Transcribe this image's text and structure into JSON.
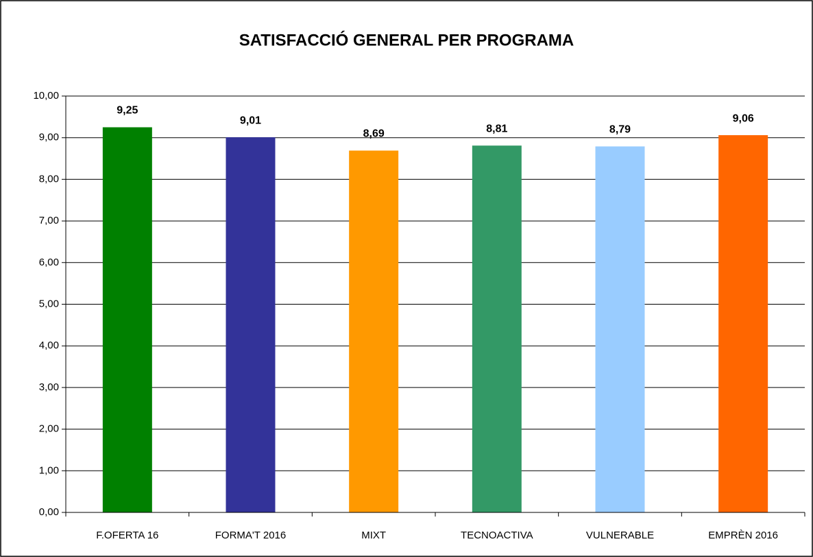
{
  "chart_data": {
    "type": "bar",
    "title": "SATISFACCIÓ GENERAL PER PROGRAMA",
    "categories": [
      "F.OFERTA 16",
      "FORMA'T 2016",
      "MIXT",
      "TECNOACTIVA",
      "VULNERABLE",
      "EMPRÈN 2016"
    ],
    "values": [
      9.25,
      9.01,
      8.69,
      8.81,
      8.79,
      9.06
    ],
    "value_labels": [
      "9,25",
      "9,01",
      "8,69",
      "8,81",
      "8,79",
      "9,06"
    ],
    "colors": [
      "#008000",
      "#333399",
      "#ff9900",
      "#339966",
      "#99ccff",
      "#ff6600"
    ],
    "ylim": [
      0,
      10
    ],
    "yticks": [
      {
        "value": 0,
        "label": "0,00"
      },
      {
        "value": 1,
        "label": "1,00"
      },
      {
        "value": 2,
        "label": "2,00"
      },
      {
        "value": 3,
        "label": "3,00"
      },
      {
        "value": 4,
        "label": "4,00"
      },
      {
        "value": 5,
        "label": "5,00"
      },
      {
        "value": 6,
        "label": "6,00"
      },
      {
        "value": 7,
        "label": "7,00"
      },
      {
        "value": 8,
        "label": "8,00"
      },
      {
        "value": 9,
        "label": "9,00"
      },
      {
        "value": 10,
        "label": "10,00"
      }
    ],
    "grid": true
  }
}
